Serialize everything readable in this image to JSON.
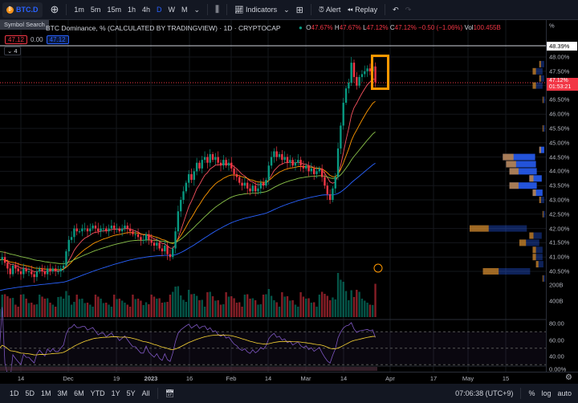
{
  "toolbar": {
    "symbol": "BTC.D",
    "coin_glyph": "₿",
    "add_icon": "plus-circle-icon",
    "intervals": [
      "1m",
      "5m",
      "15m",
      "1h",
      "4h",
      "D",
      "W",
      "M"
    ],
    "active_interval": "D",
    "indicators": "Indicators",
    "alert": "Alert",
    "replay": "Replay"
  },
  "tooltip": "Symbol Search",
  "legend": {
    "title": "BTC Dominance, % (CALCULATED BY TRADINGVIEW) · 1D · CRYPTOCAP",
    "o": "O",
    "o_val": "47.67%",
    "h": "H",
    "h_val": "47.67%",
    "l": "L",
    "l_val": "47.12%",
    "c": "C",
    "c_val": "47.12%",
    "change": "−0.50 (−1.06%)",
    "vol": "Vol",
    "vol_val": "100.455B",
    "value1": "47.12",
    "value2": "0.00",
    "value3": "47.12",
    "collapse": "⌄ 4"
  },
  "price_axis": {
    "unit": "%",
    "high_label": "48.39%",
    "current": "47.12%",
    "countdown": "01:53:21",
    "labels": [
      "48.00%",
      "47.50%",
      "46.50%",
      "46.00%",
      "45.50%",
      "45.00%",
      "44.50%",
      "44.00%",
      "43.50%",
      "43.00%",
      "42.50%",
      "42.00%",
      "41.50%",
      "41.00%",
      "40.50%"
    ],
    "volume_labels": [
      "400B",
      "200B"
    ],
    "rsi_labels": [
      "80.00",
      "60.00",
      "40.00"
    ],
    "bottom_label": "0.00%"
  },
  "time_axis": [
    "14",
    "Dec",
    "19",
    "2023",
    "16",
    "Feb",
    "14",
    "Mar",
    "14",
    "Apr",
    "17",
    "May",
    "15"
  ],
  "bottom": {
    "ranges": [
      "1D",
      "5D",
      "1M",
      "3M",
      "6M",
      "YTD",
      "1Y",
      "5Y",
      "All"
    ],
    "clock": "07:06:38 (UTC+9)",
    "pct": "%",
    "log": "log",
    "auto": "auto"
  },
  "colors": {
    "up": "#089981",
    "down": "#f23645",
    "accent": "#2962ff",
    "highlight": "#ff9800",
    "ma_fast": "#f7525f",
    "ma_mid": "#ff9800",
    "ma_slow": "#8bc34a",
    "ma_long": "#2962ff",
    "rsi": "#7e57c2",
    "rsi_ma": "#fdd835"
  },
  "chart_data": {
    "type": "candlestick",
    "start_date": "2022-11-06",
    "interval": "1D",
    "ylim": [
      40.2,
      48.6
    ],
    "closes": [
      40.9,
      41.0,
      40.8,
      40.6,
      40.4,
      40.7,
      40.6,
      40.5,
      40.4,
      40.6,
      40.5,
      40.5,
      40.4,
      40.3,
      40.5,
      40.6,
      40.5,
      40.4,
      40.6,
      40.5,
      40.6,
      40.5,
      40.5,
      40.6,
      40.7,
      41.2,
      41.6,
      41.7,
      42.0,
      41.9,
      41.9,
      42.0,
      42.0,
      41.9,
      42.0,
      42.1,
      42.0,
      41.9,
      42.0,
      42.0,
      41.9,
      42.0,
      42.1,
      42.0,
      42.0,
      41.9,
      42.0,
      42.1,
      42.0,
      41.9,
      41.8,
      41.8,
      41.7,
      41.6,
      41.6,
      41.8,
      41.6,
      41.5,
      41.4,
      41.5,
      41.3,
      41.2,
      41.4,
      41.1,
      41.0,
      41.3,
      41.9,
      42.6,
      43.0,
      43.3,
      43.6,
      43.9,
      43.7,
      44.0,
      44.3,
      44.1,
      44.4,
      44.5,
      44.3,
      44.6,
      44.4,
      44.5,
      44.3,
      44.2,
      44.4,
      44.2,
      44.3,
      44.1,
      43.9,
      43.8,
      43.6,
      43.5,
      43.6,
      43.4,
      43.3,
      43.5,
      43.3,
      43.4,
      43.6,
      43.5,
      43.7,
      44.2,
      44.5,
      44.7,
      44.5,
      44.6,
      44.4,
      44.5,
      44.3,
      44.4,
      44.2,
      44.3,
      44.4,
      44.2,
      44.1,
      44.2,
      44.0,
      44.1,
      43.9,
      44.0,
      44.1,
      43.8,
      43.5,
      43.2,
      43.0,
      43.4,
      43.8,
      44.8,
      45.6,
      46.4,
      46.9,
      47.1,
      47.8,
      47.3,
      47.0,
      47.3,
      47.4,
      47.5,
      47.6,
      47.5,
      47.67,
      47.12
    ],
    "last": {
      "open": 47.67,
      "high": 47.67,
      "low": 47.12,
      "close": 47.12
    }
  }
}
